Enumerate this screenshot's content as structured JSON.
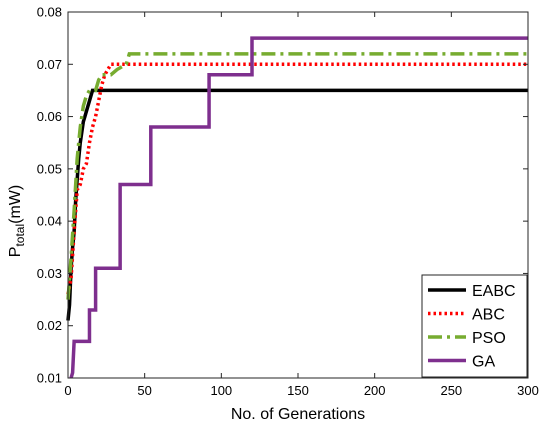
{
  "chart_data": {
    "type": "line",
    "xlabel": "No. of Generations",
    "ylabel_main": "P",
    "ylabel_sub": "total",
    "ylabel_unit": "(mW)",
    "xlim": [
      0,
      300
    ],
    "ylim": [
      0.01,
      0.08
    ],
    "xticks": [
      0,
      50,
      100,
      150,
      200,
      250,
      300
    ],
    "yticks": [
      0.01,
      0.02,
      0.03,
      0.04,
      0.05,
      0.06,
      0.07,
      0.08
    ],
    "grid": false,
    "legend_position": "bottom-right",
    "series": [
      {
        "name": "EABC",
        "color": "#000000",
        "dash": "solid",
        "points": [
          [
            0,
            0.021
          ],
          [
            1,
            0.024
          ],
          [
            2,
            0.031
          ],
          [
            3,
            0.035
          ],
          [
            4,
            0.038
          ],
          [
            5,
            0.044
          ],
          [
            6,
            0.048
          ],
          [
            7,
            0.052
          ],
          [
            8,
            0.055
          ],
          [
            9,
            0.057
          ],
          [
            10,
            0.059
          ],
          [
            11,
            0.06
          ],
          [
            12,
            0.061
          ],
          [
            13,
            0.062
          ],
          [
            14,
            0.063
          ],
          [
            15,
            0.064
          ],
          [
            16,
            0.065
          ],
          [
            300,
            0.065
          ]
        ]
      },
      {
        "name": "ABC",
        "color": "#ff0000",
        "dash": "dotted",
        "points": [
          [
            0,
            0.026
          ],
          [
            2,
            0.029
          ],
          [
            4,
            0.038
          ],
          [
            6,
            0.046
          ],
          [
            8,
            0.047
          ],
          [
            10,
            0.05
          ],
          [
            12,
            0.051
          ],
          [
            14,
            0.055
          ],
          [
            16,
            0.058
          ],
          [
            18,
            0.06
          ],
          [
            20,
            0.063
          ],
          [
            22,
            0.066
          ],
          [
            24,
            0.068
          ],
          [
            26,
            0.069
          ],
          [
            28,
            0.07
          ],
          [
            300,
            0.07
          ]
        ]
      },
      {
        "name": "PSO",
        "color": "#77ac30",
        "dash": "dashdot",
        "points": [
          [
            0,
            0.025
          ],
          [
            2,
            0.033
          ],
          [
            4,
            0.042
          ],
          [
            6,
            0.052
          ],
          [
            8,
            0.058
          ],
          [
            10,
            0.062
          ],
          [
            12,
            0.064
          ],
          [
            14,
            0.065
          ],
          [
            16,
            0.065
          ],
          [
            18,
            0.065
          ],
          [
            20,
            0.067
          ],
          [
            22,
            0.068
          ],
          [
            28,
            0.068
          ],
          [
            32,
            0.069
          ],
          [
            38,
            0.07
          ],
          [
            40,
            0.072
          ],
          [
            300,
            0.072
          ]
        ]
      },
      {
        "name": "GA",
        "color": "#7e2f8e",
        "dash": "solid",
        "points": [
          [
            2,
            0.01
          ],
          [
            3,
            0.011
          ],
          [
            4,
            0.017
          ],
          [
            14,
            0.017
          ],
          [
            14,
            0.023
          ],
          [
            18,
            0.023
          ],
          [
            18,
            0.031
          ],
          [
            34,
            0.031
          ],
          [
            34,
            0.047
          ],
          [
            54,
            0.047
          ],
          [
            54,
            0.058
          ],
          [
            92,
            0.058
          ],
          [
            92,
            0.068
          ],
          [
            120,
            0.068
          ],
          [
            120,
            0.075
          ],
          [
            300,
            0.075
          ]
        ]
      }
    ]
  }
}
